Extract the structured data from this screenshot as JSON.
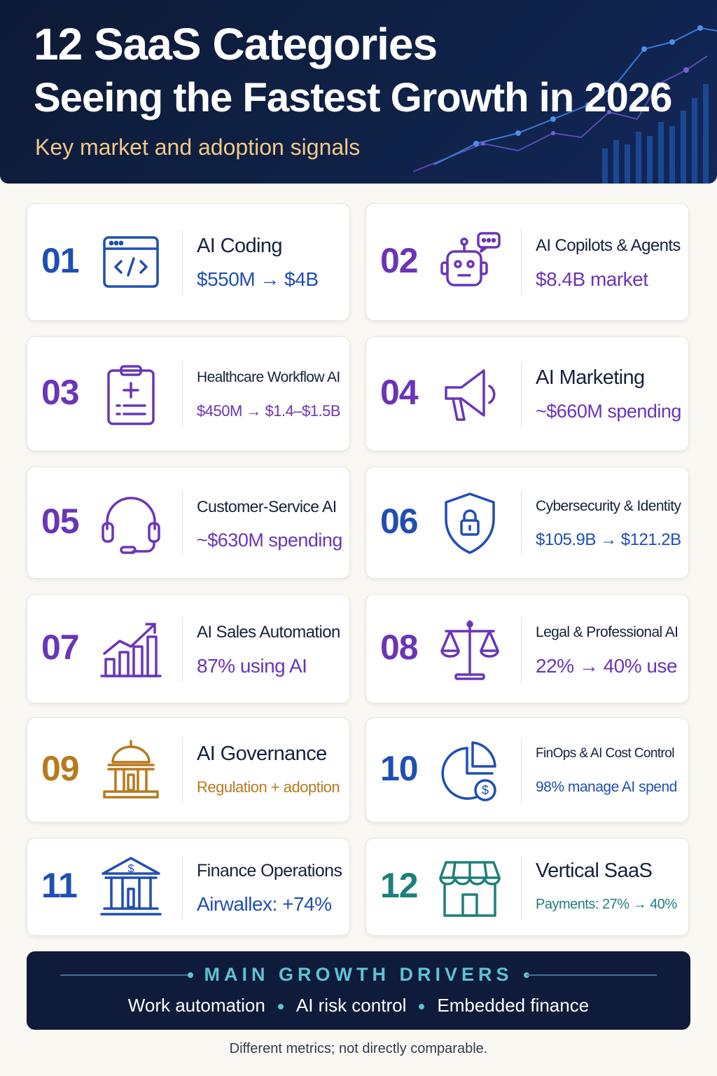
{
  "header": {
    "title_line1": "12 SaaS Categories",
    "title_line2": "Seeing the Fastest Growth in 2026",
    "subtitle": "Key market and adoption signals"
  },
  "categories": [
    {
      "number": "01",
      "title": "AI Coding",
      "metric": "$550M → $4B",
      "icon": "code-window-icon",
      "color": "#1f4fb3"
    },
    {
      "number": "02",
      "title": "AI Copilots & Agents",
      "metric": "$8.4B market",
      "icon": "robot-chat-icon",
      "color": "#6a35b8"
    },
    {
      "number": "03",
      "title": "Healthcare Workflow AI",
      "metric": "$450M → $1.4–$1.5B",
      "icon": "medical-clipboard-icon",
      "color": "#6a35b8"
    },
    {
      "number": "04",
      "title": "AI Marketing",
      "metric": "~$660M spending",
      "icon": "megaphone-icon",
      "color": "#6a35b8"
    },
    {
      "number": "05",
      "title": "Customer-Service AI",
      "metric": "~$630M spending",
      "icon": "headset-icon",
      "color": "#6a35b8"
    },
    {
      "number": "06",
      "title": "Cybersecurity & Identity",
      "metric": "$105.9B → $121.2B",
      "icon": "shield-lock-icon",
      "color": "#1f4fb3"
    },
    {
      "number": "07",
      "title": "AI Sales Automation",
      "metric": "87% using AI",
      "icon": "growth-chart-icon",
      "color": "#6a35b8"
    },
    {
      "number": "08",
      "title": "Legal & Professional AI",
      "metric": "22% → 40% use",
      "icon": "scales-icon",
      "color": "#6a35b8"
    },
    {
      "number": "09",
      "title": "AI Governance",
      "metric": "Regulation + adoption",
      "icon": "government-building-icon",
      "color": "#b87a1e"
    },
    {
      "number": "10",
      "title": "FinOps & AI Cost Control",
      "metric": "98% manage AI spend",
      "icon": "pie-dollar-icon",
      "color": "#1f4fb3"
    },
    {
      "number": "11",
      "title": "Finance Operations",
      "metric": "Airwallex: +74%",
      "icon": "bank-dollar-icon",
      "color": "#1f4fb3"
    },
    {
      "number": "12",
      "title": "Vertical SaaS",
      "metric": "Payments: 27% → 40%",
      "icon": "storefront-icon",
      "color": "#1f7f7a"
    }
  ],
  "drivers": {
    "heading": "MAIN GROWTH DRIVERS",
    "items": [
      "Work automation",
      "AI risk control",
      "Embedded finance"
    ]
  },
  "footnote": "Different metrics; not directly comparable."
}
